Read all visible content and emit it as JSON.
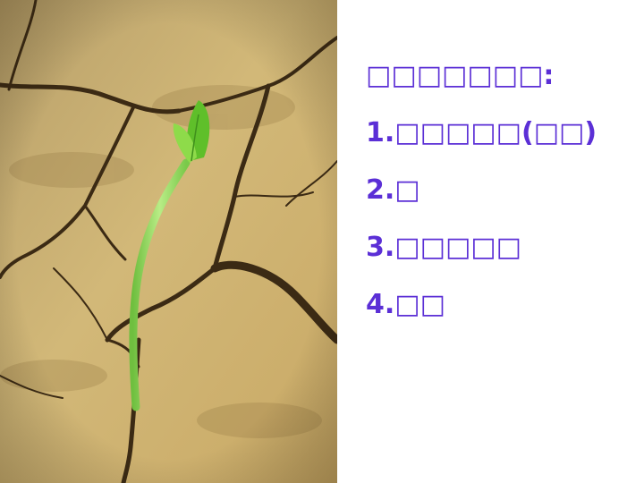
{
  "slide": {
    "heading": "□□□□□□□:",
    "items": [
      "1.□□□□□(□□)",
      "2.□",
      "3.□□□□□",
      "4.□□"
    ]
  },
  "colors": {
    "text": "#5b2fd6",
    "background": "#ffffff",
    "soil": "#c9ad6e",
    "sprout": "#8fd35a"
  },
  "photo": {
    "subject": "seedling-in-cracked-soil"
  }
}
